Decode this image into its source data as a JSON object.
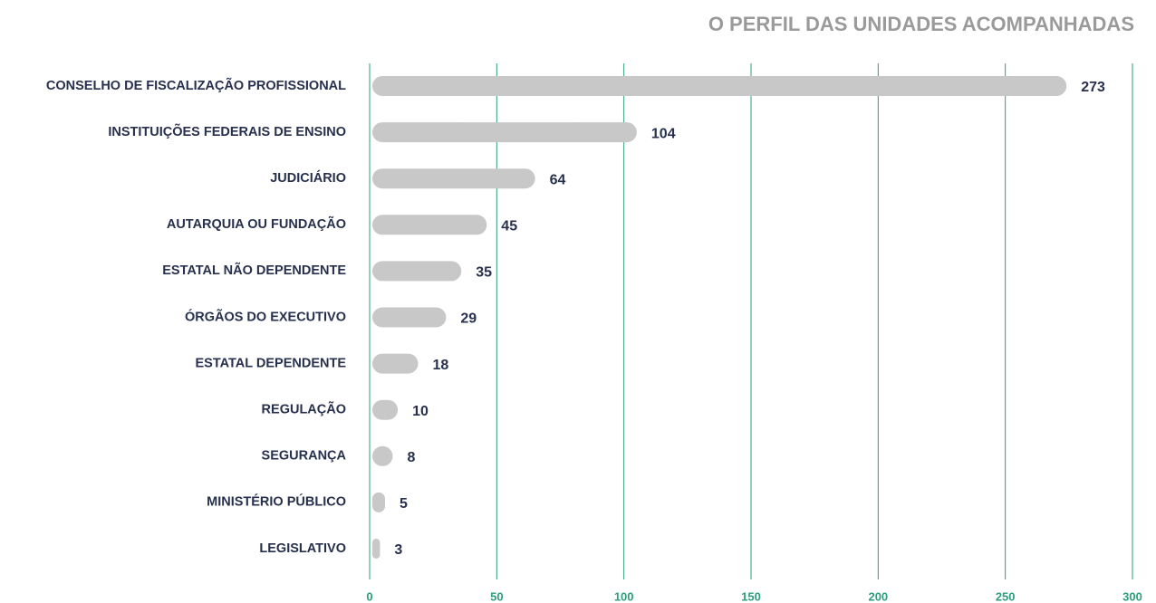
{
  "chart_data": {
    "type": "barh",
    "title": "O PERFIL DAS UNIDADES ACOMPANHADAS",
    "categories": [
      "CONSELHO DE FISCALIZAÇÃO PROFISSIONAL",
      "INSTITUIÇÕES FEDERAIS DE ENSINO",
      "JUDICIÁRIO",
      "AUTARQUIA OU FUNDAÇÃO",
      "ESTATAL NÃO DEPENDENTE",
      "ÓRGÃOS DO EXECUTIVO",
      "ESTATAL DEPENDENTE",
      "REGULAÇÃO",
      "SEGURANÇA",
      "MINISTÉRIO PÚBLICO",
      "LEGISLATIVO"
    ],
    "values": [
      273,
      104,
      64,
      45,
      35,
      29,
      18,
      10,
      8,
      5,
      3
    ],
    "color": "#c8c8c8",
    "grid_color": "#2e9e7e",
    "xlim": [
      0,
      300
    ],
    "xticks": [
      0,
      50,
      100,
      150,
      200,
      250,
      300
    ],
    "grid": true
  }
}
